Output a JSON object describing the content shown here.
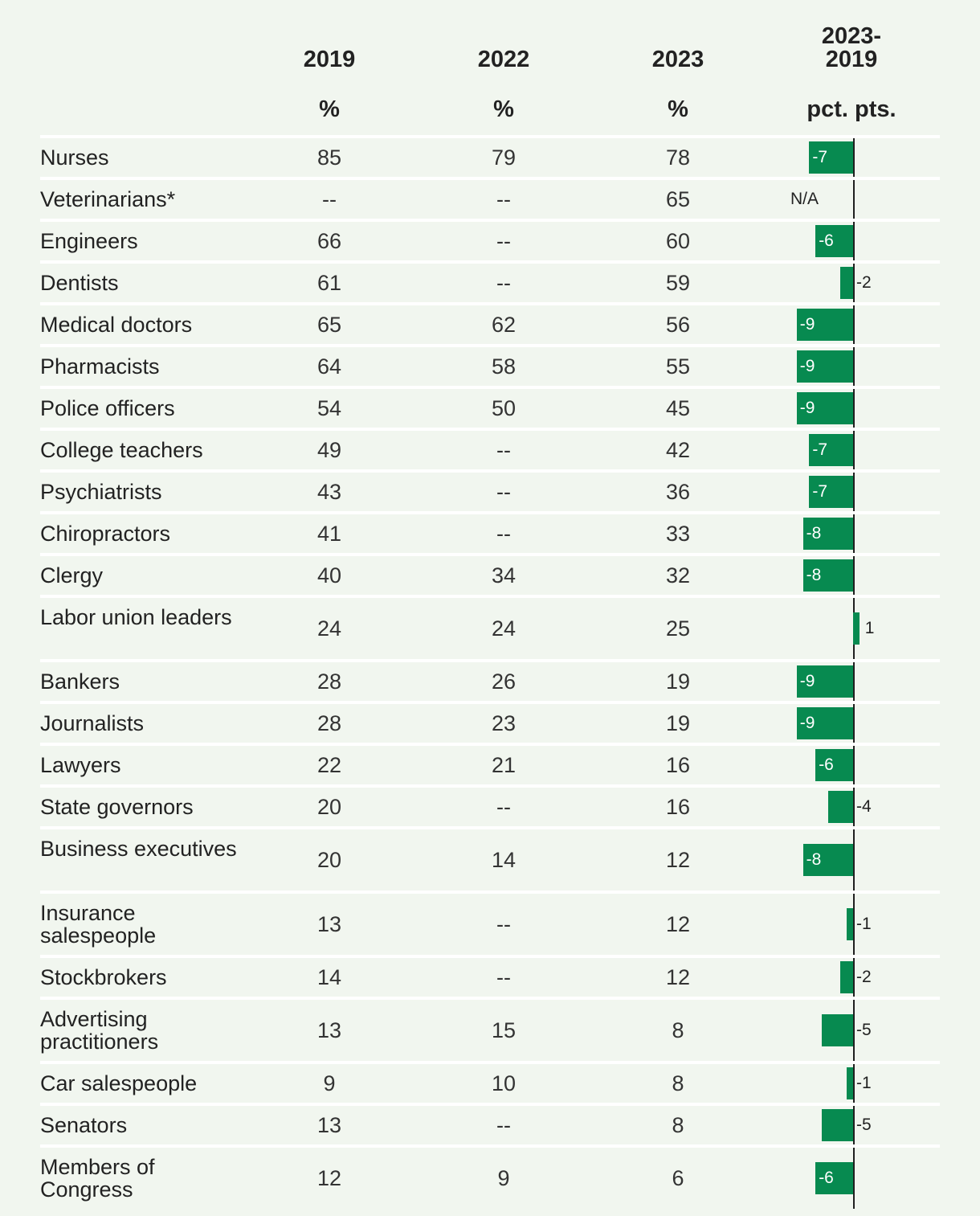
{
  "chart_data": {
    "type": "table",
    "headers": {
      "y2019": "2019",
      "y2022": "2022",
      "y2023": "2023",
      "diff_line1": "2023-",
      "diff_line2": "2019",
      "unit_2019": "%",
      "unit_2022": "%",
      "unit_2023": "%",
      "unit_diff": "pct. pts."
    },
    "colors": {
      "bar": "#078a50",
      "background": "#f1f6ef"
    },
    "rows": [
      {
        "label": "Nurses",
        "v2019": "85",
        "v2022": "79",
        "v2023": "78",
        "diff": -7,
        "diff_label": "-7"
      },
      {
        "label": "Veterinarians*",
        "v2019": "--",
        "v2022": "--",
        "v2023": "65",
        "diff": null,
        "diff_label": "N/A"
      },
      {
        "label": "Engineers",
        "v2019": "66",
        "v2022": "--",
        "v2023": "60",
        "diff": -6,
        "diff_label": "-6"
      },
      {
        "label": "Dentists",
        "v2019": "61",
        "v2022": "--",
        "v2023": "59",
        "diff": -2,
        "diff_label": "-2"
      },
      {
        "label": "Medical doctors",
        "v2019": "65",
        "v2022": "62",
        "v2023": "56",
        "diff": -9,
        "diff_label": "-9"
      },
      {
        "label": "Pharmacists",
        "v2019": "64",
        "v2022": "58",
        "v2023": "55",
        "diff": -9,
        "diff_label": "-9"
      },
      {
        "label": "Police officers",
        "v2019": "54",
        "v2022": "50",
        "v2023": "45",
        "diff": -9,
        "diff_label": "-9"
      },
      {
        "label": "College teachers",
        "v2019": "49",
        "v2022": "--",
        "v2023": "42",
        "diff": -7,
        "diff_label": "-7"
      },
      {
        "label": "Psychiatrists",
        "v2019": "43",
        "v2022": "--",
        "v2023": "36",
        "diff": -7,
        "diff_label": "-7"
      },
      {
        "label": "Chiropractors",
        "v2019": "41",
        "v2022": "--",
        "v2023": "33",
        "diff": -8,
        "diff_label": "-8"
      },
      {
        "label": "Clergy",
        "v2019": "40",
        "v2022": "34",
        "v2023": "32",
        "diff": -8,
        "diff_label": "-8"
      },
      {
        "label": "Labor union leaders",
        "v2019": "24",
        "v2022": "24",
        "v2023": "25",
        "diff": 1,
        "diff_label": "1"
      },
      {
        "label": "Bankers",
        "v2019": "28",
        "v2022": "26",
        "v2023": "19",
        "diff": -9,
        "diff_label": "-9"
      },
      {
        "label": "Journalists",
        "v2019": "28",
        "v2022": "23",
        "v2023": "19",
        "diff": -9,
        "diff_label": "-9"
      },
      {
        "label": "Lawyers",
        "v2019": "22",
        "v2022": "21",
        "v2023": "16",
        "diff": -6,
        "diff_label": "-6"
      },
      {
        "label": "State governors",
        "v2019": "20",
        "v2022": "--",
        "v2023": "16",
        "diff": -4,
        "diff_label": "-4"
      },
      {
        "label": "Business executives",
        "v2019": "20",
        "v2022": "14",
        "v2023": "12",
        "diff": -8,
        "diff_label": "-8"
      },
      {
        "label": "Insurance salespeople",
        "v2019": "13",
        "v2022": "--",
        "v2023": "12",
        "diff": -1,
        "diff_label": "-1"
      },
      {
        "label": "Stockbrokers",
        "v2019": "14",
        "v2022": "--",
        "v2023": "12",
        "diff": -2,
        "diff_label": "-2"
      },
      {
        "label": "Advertising practitioners",
        "v2019": "13",
        "v2022": "15",
        "v2023": "8",
        "diff": -5,
        "diff_label": "-5"
      },
      {
        "label": "Car salespeople",
        "v2019": "9",
        "v2022": "10",
        "v2023": "8",
        "diff": -1,
        "diff_label": "-1"
      },
      {
        "label": "Senators",
        "v2019": "13",
        "v2022": "--",
        "v2023": "8",
        "diff": -5,
        "diff_label": "-5"
      },
      {
        "label": "Members of Congress",
        "v2019": "12",
        "v2022": "9",
        "v2023": "6",
        "diff": -6,
        "diff_label": "-6"
      }
    ]
  }
}
